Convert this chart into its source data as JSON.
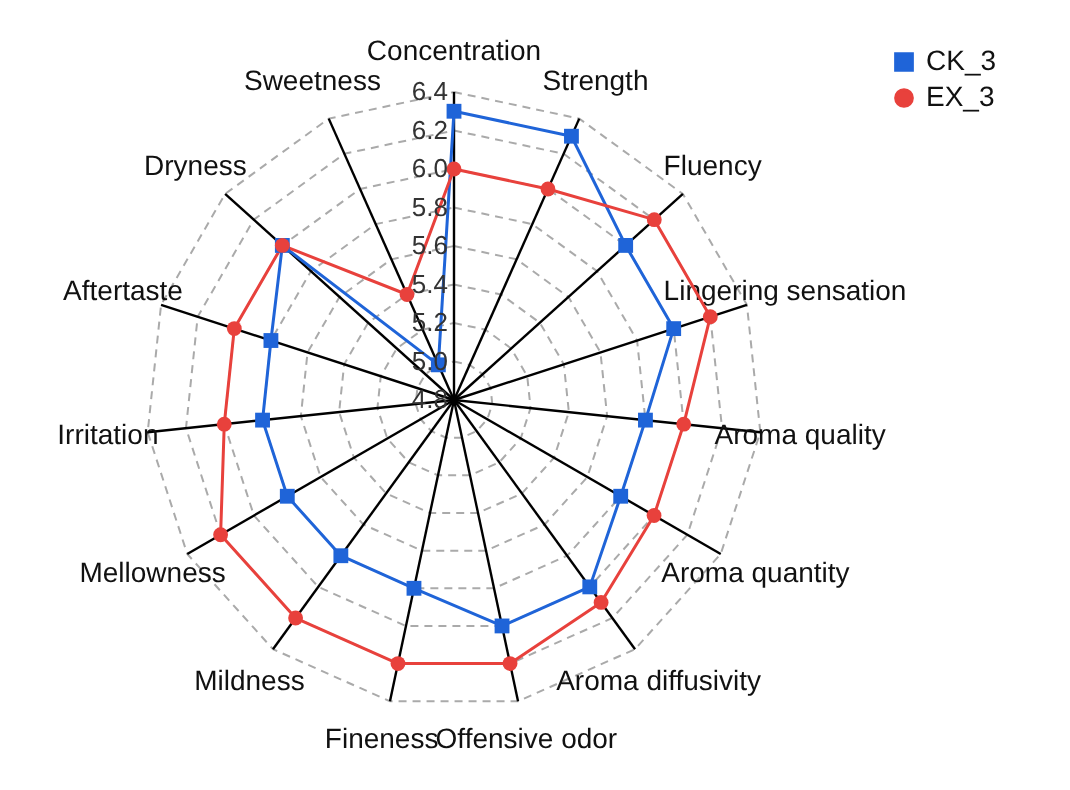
{
  "chart_data": {
    "type": "radar",
    "categories": [
      "Concentration",
      "Strength",
      "Fluency",
      "Lingering sensation",
      "Aroma quality",
      "Aroma quantity",
      "Aroma diffusivity",
      "Offensive odor",
      "Fineness",
      "Mildness",
      "Mellowness",
      "Irritation",
      "Aftertaste",
      "Dryness",
      "Sweetness"
    ],
    "series": [
      {
        "name": "CK_3",
        "color": "#1f64d8",
        "marker": "square",
        "values": [
          6.3,
          6.3,
          6.0,
          6.0,
          5.8,
          5.8,
          6.0,
          6.0,
          5.8,
          5.8,
          5.8,
          5.8,
          5.8,
          6.0,
          5.0
        ]
      },
      {
        "name": "EX_3",
        "color": "#e8413c",
        "marker": "circle",
        "values": [
          6.0,
          6.0,
          6.2,
          6.2,
          6.0,
          6.0,
          6.1,
          6.2,
          6.2,
          6.2,
          6.2,
          6.0,
          6.0,
          6.0,
          5.4
        ]
      }
    ],
    "ylim": [
      4.8,
      6.4
    ],
    "yticks": [
      {
        "value": 4.8,
        "label": "4.8"
      },
      {
        "value": 5.0,
        "label": "5.0"
      },
      {
        "value": 5.2,
        "label": "5.2"
      },
      {
        "value": 5.4,
        "label": "5.4"
      },
      {
        "value": 5.6,
        "label": "5.6"
      },
      {
        "value": 5.8,
        "label": "5.8"
      },
      {
        "value": 6.0,
        "label": "6.0"
      },
      {
        "value": 6.2,
        "label": "6.2"
      },
      {
        "value": 6.4,
        "label": "6.4"
      }
    ],
    "grid": true,
    "legend": "top right"
  }
}
